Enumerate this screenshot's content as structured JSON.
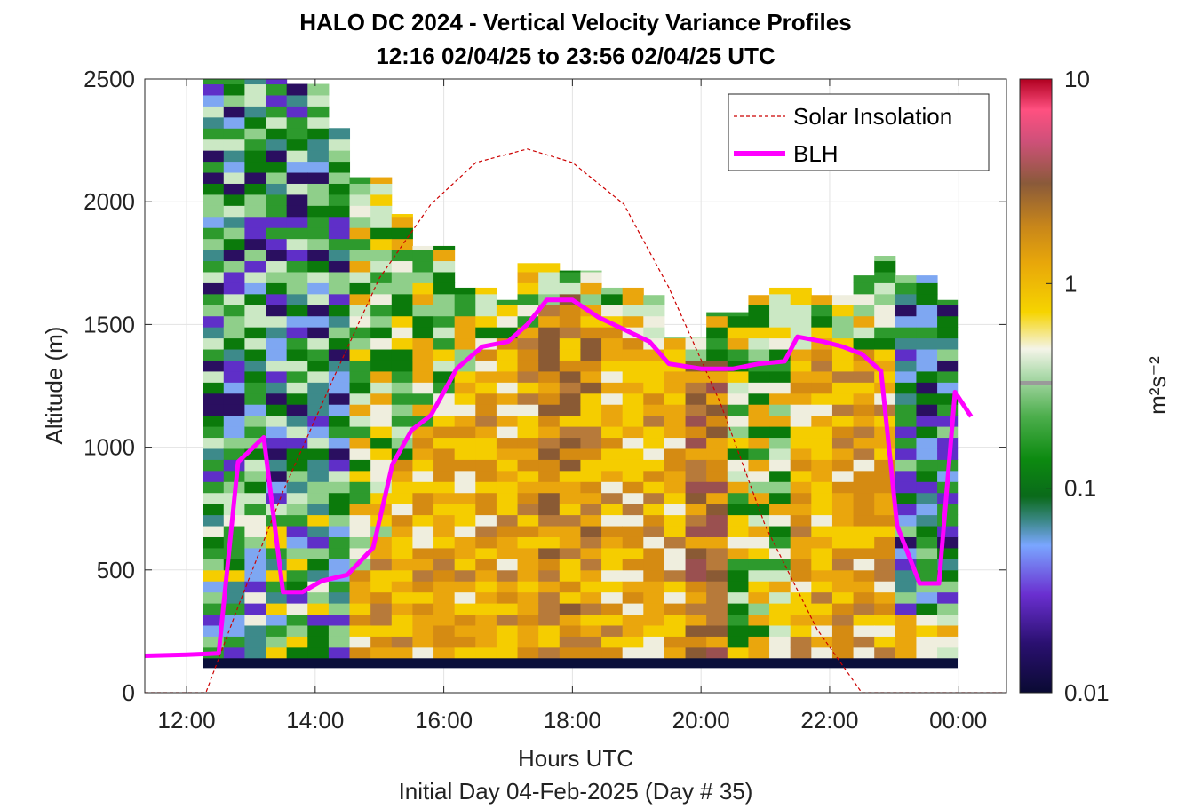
{
  "chart_data": {
    "type": "heatmap",
    "title": "HALO DC 2024 - Vertical Velocity Variance Profiles",
    "subtitle": "12:16 02/04/25 to 23:56 02/04/25  UTC",
    "xlabel": "Hours UTC",
    "xlabel2": "Initial Day 04-Feb-2025 (Day # 35)",
    "ylabel": "Altitude (m)",
    "xlim": [
      11.35,
      24.75
    ],
    "ylim": [
      0,
      2500
    ],
    "x_ticks": [
      12,
      14,
      16,
      18,
      20,
      22,
      24
    ],
    "x_tick_labels": [
      "12:00",
      "14:00",
      "16:00",
      "18:00",
      "20:00",
      "22:00",
      "00:00"
    ],
    "y_ticks": [
      0,
      500,
      1000,
      1500,
      2000,
      2500
    ],
    "y_tick_labels": [
      "0",
      "500",
      "1000",
      "1500",
      "2000",
      "2500"
    ],
    "grid": true,
    "legend_position": "top-right",
    "colorbar": {
      "label": "m²s⁻²",
      "scale": "log",
      "range": [
        0.01,
        10
      ],
      "ticks": [
        0.01,
        0.1,
        1,
        10
      ],
      "tick_labels": [
        "0.01",
        "0.1",
        "1",
        "10"
      ]
    },
    "series": [
      {
        "name": "Solar Insolation",
        "style": "dashed",
        "color": "#cc0000",
        "x": [
          11.35,
          12.3,
          12.8,
          13.5,
          14.3,
          15.0,
          15.8,
          16.5,
          17.3,
          18.0,
          18.8,
          19.5,
          20.3,
          21.0,
          21.8,
          22.5,
          24.75
        ],
        "y": [
          0,
          0,
          350,
          820,
          1290,
          1690,
          1990,
          2160,
          2215,
          2160,
          1990,
          1650,
          1180,
          680,
          260,
          0,
          0
        ]
      },
      {
        "name": "BLH",
        "style": "solid",
        "color": "#ff00ff",
        "x": [
          11.35,
          12.0,
          12.5,
          12.8,
          13.2,
          13.5,
          13.8,
          14.1,
          14.5,
          14.9,
          15.2,
          15.5,
          15.8,
          16.2,
          16.6,
          17.0,
          17.3,
          17.6,
          18.0,
          18.4,
          18.8,
          19.2,
          19.5,
          20.0,
          20.5,
          20.9,
          21.3,
          21.5,
          21.9,
          22.2,
          22.5,
          22.8,
          23.05,
          23.4,
          23.7,
          23.95,
          24.2
        ],
        "y": [
          150,
          155,
          160,
          940,
          1040,
          410,
          410,
          455,
          480,
          590,
          930,
          1070,
          1130,
          1320,
          1410,
          1430,
          1500,
          1600,
          1600,
          1530,
          1480,
          1430,
          1340,
          1320,
          1320,
          1340,
          1350,
          1450,
          1430,
          1410,
          1380,
          1310,
          680,
          445,
          445,
          1225,
          1125
        ]
      }
    ]
  }
}
